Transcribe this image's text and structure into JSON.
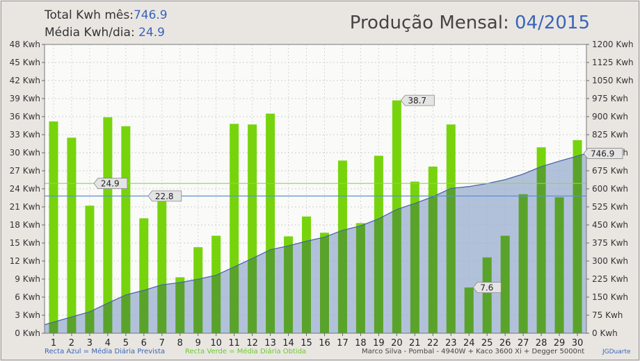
{
  "header": {
    "total_label": "Total Kwh mês:",
    "total_value": "746.9",
    "avg_label": "Média Kwh/dia:",
    "avg_value": "24.9",
    "title_label": "Produção Mensal:",
    "title_value": "04/2015"
  },
  "footer": {
    "blue_legend": "Recta Azul = Média Diária Prevista",
    "green_legend": "Recta Verde = Média Diária Obtida",
    "system_info": "Marco Silva - Pombal - 4940W + Kaco 3600 Xi + Degger 5000nt",
    "author": "JGDuarte"
  },
  "colors": {
    "bar_green": "#77d40c",
    "bar_dark": "#5aa32a",
    "area_fill": "#9aaed0",
    "area_line": "#4a66a6",
    "avg_obtained": "#8fd64a",
    "avg_expected": "#5b8fd0",
    "plot_bg": "#fafaf8"
  },
  "chart_data": {
    "type": "bar",
    "x": [
      "1",
      "2",
      "3",
      "4",
      "5",
      "6",
      "7",
      "8",
      "9",
      "10",
      "11",
      "12",
      "13",
      "14",
      "15",
      "16",
      "17",
      "18",
      "19",
      "20",
      "21",
      "22",
      "23",
      "24",
      "25",
      "26",
      "27",
      "28",
      "29",
      "30"
    ],
    "daily_kwh": [
      35.2,
      32.5,
      21.2,
      35.9,
      34.4,
      19.1,
      22.8,
      9.3,
      14.3,
      16.2,
      34.8,
      34.7,
      36.5,
      16.1,
      19.4,
      16.7,
      28.7,
      18.3,
      29.5,
      38.7,
      25.2,
      27.7,
      34.7,
      7.6,
      12.6,
      16.2,
      23.1,
      30.9,
      22.6,
      32.1
    ],
    "cumulative_kwh": [
      35.2,
      67.7,
      88.9,
      124.8,
      159.2,
      178.3,
      201.1,
      210.4,
      224.7,
      240.9,
      275.7,
      310.4,
      346.9,
      363.0,
      382.4,
      399.1,
      427.8,
      446.1,
      475.6,
      514.3,
      539.5,
      567.2,
      601.9,
      609.5,
      622.1,
      638.3,
      661.4,
      692.3,
      714.9,
      746.9
    ],
    "avg_obtained": 24.9,
    "avg_expected": 22.8,
    "left_axis": {
      "min": 0,
      "max": 48,
      "step": 3,
      "ticks": [
        "0 Kwh",
        "3 Kwh",
        "6 Kwh",
        "9 Kwh",
        "12 Kwh",
        "15 Kwh",
        "18 Kwh",
        "21 Kwh",
        "24 Kwh",
        "27 Kwh",
        "30 Kwh",
        "33 Kwh",
        "36 Kwh",
        "39 Kwh",
        "42 Kwh",
        "45 Kwh",
        "48 Kwh"
      ]
    },
    "right_axis": {
      "min": 0,
      "max": 1200,
      "step": 75,
      "ticks": [
        "0 Kwh",
        "75 Kwh",
        "150 Kwh",
        "225 Kwh",
        "300 Kwh",
        "375 Kwh",
        "450 Kwh",
        "525 Kwh",
        "600 Kwh",
        "675 Kwh",
        "750 Kwh",
        "825 Kwh",
        "900 Kwh",
        "975 Kwh",
        "1050 Kwh",
        "1125 Kwh",
        "1200 Kwh"
      ]
    },
    "annotations": [
      {
        "text": "38.7",
        "day": 20,
        "value": 38.7,
        "axis": "left"
      },
      {
        "text": "24.9",
        "day": 3,
        "value": 24.9,
        "axis": "left"
      },
      {
        "text": "22.8",
        "day": 6,
        "value": 22.8,
        "axis": "left"
      },
      {
        "text": "7.6",
        "day": 24,
        "value": 7.6,
        "axis": "left"
      },
      {
        "text": "746.9",
        "day": 30,
        "value": 746.9,
        "axis": "right"
      }
    ],
    "grid": true
  }
}
